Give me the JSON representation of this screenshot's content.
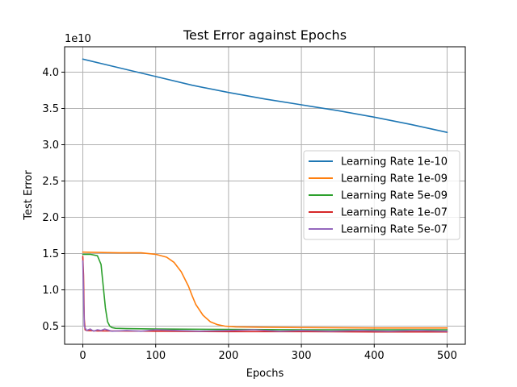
{
  "chart_data": {
    "type": "line",
    "title": "Test Error against Epochs",
    "xlabel": "Epochs",
    "ylabel": "Test Error",
    "y_multiplier_label": "1e10",
    "y_scale": 10000000000,
    "xlim": [
      -25,
      525
    ],
    "ylim": [
      0.25,
      4.35
    ],
    "x_ticks": [
      0,
      100,
      200,
      300,
      400,
      500
    ],
    "y_ticks": [
      0.5,
      1.0,
      1.5,
      2.0,
      2.5,
      3.0,
      3.5,
      4.0
    ],
    "x_tick_labels": [
      "0",
      "100",
      "200",
      "300",
      "400",
      "500"
    ],
    "y_tick_labels": [
      "0.5",
      "1.0",
      "1.5",
      "2.0",
      "2.5",
      "3.0",
      "3.5",
      "4.0"
    ],
    "grid": true,
    "legend_position": "center-right",
    "series": [
      {
        "name": "Learning Rate 1e-10",
        "color": "#1f77b4",
        "x": [
          0,
          50,
          100,
          150,
          200,
          250,
          300,
          350,
          400,
          450,
          500
        ],
        "y": [
          4.18,
          4.06,
          3.94,
          3.82,
          3.72,
          3.63,
          3.55,
          3.47,
          3.38,
          3.28,
          3.17
        ]
      },
      {
        "name": "Learning Rate 1e-09",
        "color": "#ff7f0e",
        "x": [
          0,
          50,
          80,
          100,
          115,
          125,
          135,
          145,
          150,
          155,
          165,
          175,
          185,
          195,
          210,
          250,
          300,
          400,
          500
        ],
        "y": [
          1.52,
          1.51,
          1.51,
          1.49,
          1.45,
          1.38,
          1.25,
          1.05,
          0.92,
          0.8,
          0.65,
          0.56,
          0.52,
          0.5,
          0.49,
          0.485,
          0.48,
          0.475,
          0.475
        ]
      },
      {
        "name": "Learning Rate 5e-09",
        "color": "#2ca02c",
        "x": [
          0,
          10,
          20,
          25,
          28,
          31,
          34,
          37,
          40,
          45,
          60,
          100,
          200,
          300,
          400,
          500
        ],
        "y": [
          1.49,
          1.49,
          1.47,
          1.35,
          1.05,
          0.75,
          0.56,
          0.5,
          0.48,
          0.47,
          0.465,
          0.46,
          0.455,
          0.45,
          0.45,
          0.45
        ]
      },
      {
        "name": "Learning Rate 1e-07",
        "color": "#d62728",
        "x": [
          0,
          1,
          2,
          3,
          5,
          20,
          100,
          200,
          300,
          400,
          500
        ],
        "y": [
          1.46,
          1.2,
          0.6,
          0.45,
          0.44,
          0.435,
          0.43,
          0.425,
          0.425,
          0.42,
          0.42
        ]
      },
      {
        "name": "Learning Rate 5e-07",
        "color": "#9467bd",
        "x": [
          0,
          2,
          5,
          10,
          15,
          20,
          25,
          30,
          40,
          60,
          80,
          100,
          130,
          160,
          200,
          235,
          270,
          300,
          340,
          380,
          420,
          460,
          500
        ],
        "y": [
          1.4,
          0.5,
          0.44,
          0.46,
          0.43,
          0.45,
          0.44,
          0.46,
          0.43,
          0.44,
          0.43,
          0.45,
          0.44,
          0.43,
          0.44,
          0.45,
          0.43,
          0.44,
          0.43,
          0.44,
          0.43,
          0.44,
          0.43
        ]
      }
    ]
  }
}
